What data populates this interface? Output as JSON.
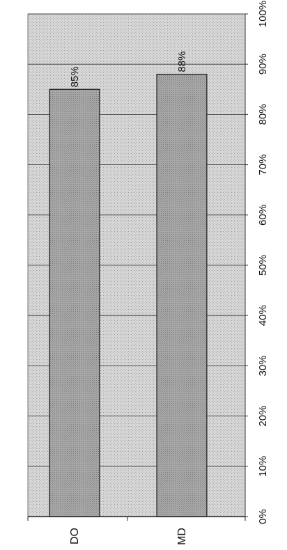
{
  "chart_data": {
    "type": "bar",
    "orientation": "horizontal (rotated figure)",
    "categories": [
      "DO",
      "MD"
    ],
    "values": [
      85,
      88
    ],
    "data_labels": [
      "85%",
      "88%"
    ],
    "xlim": [
      0,
      100
    ],
    "ticks": [
      0,
      10,
      20,
      30,
      40,
      50,
      60,
      70,
      80,
      90,
      100
    ],
    "tick_labels": [
      "0%",
      "10%",
      "20%",
      "30%",
      "40%",
      "50%",
      "60%",
      "70%",
      "80%",
      "90%",
      "100%"
    ],
    "grid": true,
    "legend": "none",
    "title": "",
    "xlabel": "",
    "ylabel": "",
    "colors": {
      "plot_background": "#d9d9d9",
      "bar_fill": "#a9a9a9",
      "bar_stroke": "#222222",
      "gridline": "#333333"
    }
  }
}
